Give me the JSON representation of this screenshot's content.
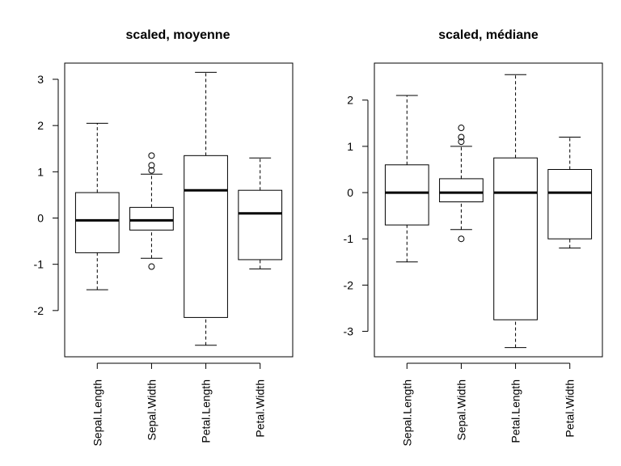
{
  "chart_data": [
    {
      "type": "boxplot",
      "title": "scaled, moyenne",
      "xlabel": "",
      "ylabel": "",
      "ylim": [
        -3.0,
        3.35
      ],
      "yticks": [
        -2,
        -1,
        0,
        1,
        2,
        3
      ],
      "categories": [
        "Sepal.Length",
        "Sepal.Width",
        "Petal.Length",
        "Petal.Width"
      ],
      "boxes": [
        {
          "whisker_low": -1.55,
          "q1": -0.75,
          "median": -0.05,
          "q3": 0.55,
          "whisker_high": 2.05,
          "outliers": []
        },
        {
          "whisker_low": -0.87,
          "q1": -0.26,
          "median": -0.05,
          "q3": 0.23,
          "whisker_high": 0.95,
          "outliers": [
            -1.05,
            1.03,
            1.14,
            1.35
          ]
        },
        {
          "whisker_low": -2.75,
          "q1": -2.15,
          "median": 0.6,
          "q3": 1.35,
          "whisker_high": 3.15,
          "outliers": []
        },
        {
          "whisker_low": -1.1,
          "q1": -0.9,
          "median": 0.1,
          "q3": 0.6,
          "whisker_high": 1.3,
          "outliers": []
        }
      ]
    },
    {
      "type": "boxplot",
      "title": "scaled, médiane",
      "xlabel": "",
      "ylabel": "",
      "ylim": [
        -3.55,
        2.8
      ],
      "yticks": [
        -3,
        -2,
        -1,
        0,
        1,
        2
      ],
      "categories": [
        "Sepal.Length",
        "Sepal.Width",
        "Petal.Length",
        "Petal.Width"
      ],
      "boxes": [
        {
          "whisker_low": -1.5,
          "q1": -0.7,
          "median": 0.0,
          "q3": 0.6,
          "whisker_high": 2.1,
          "outliers": []
        },
        {
          "whisker_low": -0.8,
          "q1": -0.2,
          "median": 0.0,
          "q3": 0.3,
          "whisker_high": 1.0,
          "outliers": [
            -1.0,
            1.1,
            1.2,
            1.4
          ]
        },
        {
          "whisker_low": -3.35,
          "q1": -2.75,
          "median": 0.0,
          "q3": 0.75,
          "whisker_high": 2.55,
          "outliers": []
        },
        {
          "whisker_low": -1.2,
          "q1": -1.0,
          "median": 0.0,
          "q3": 0.5,
          "whisker_high": 1.2,
          "outliers": []
        }
      ]
    }
  ]
}
